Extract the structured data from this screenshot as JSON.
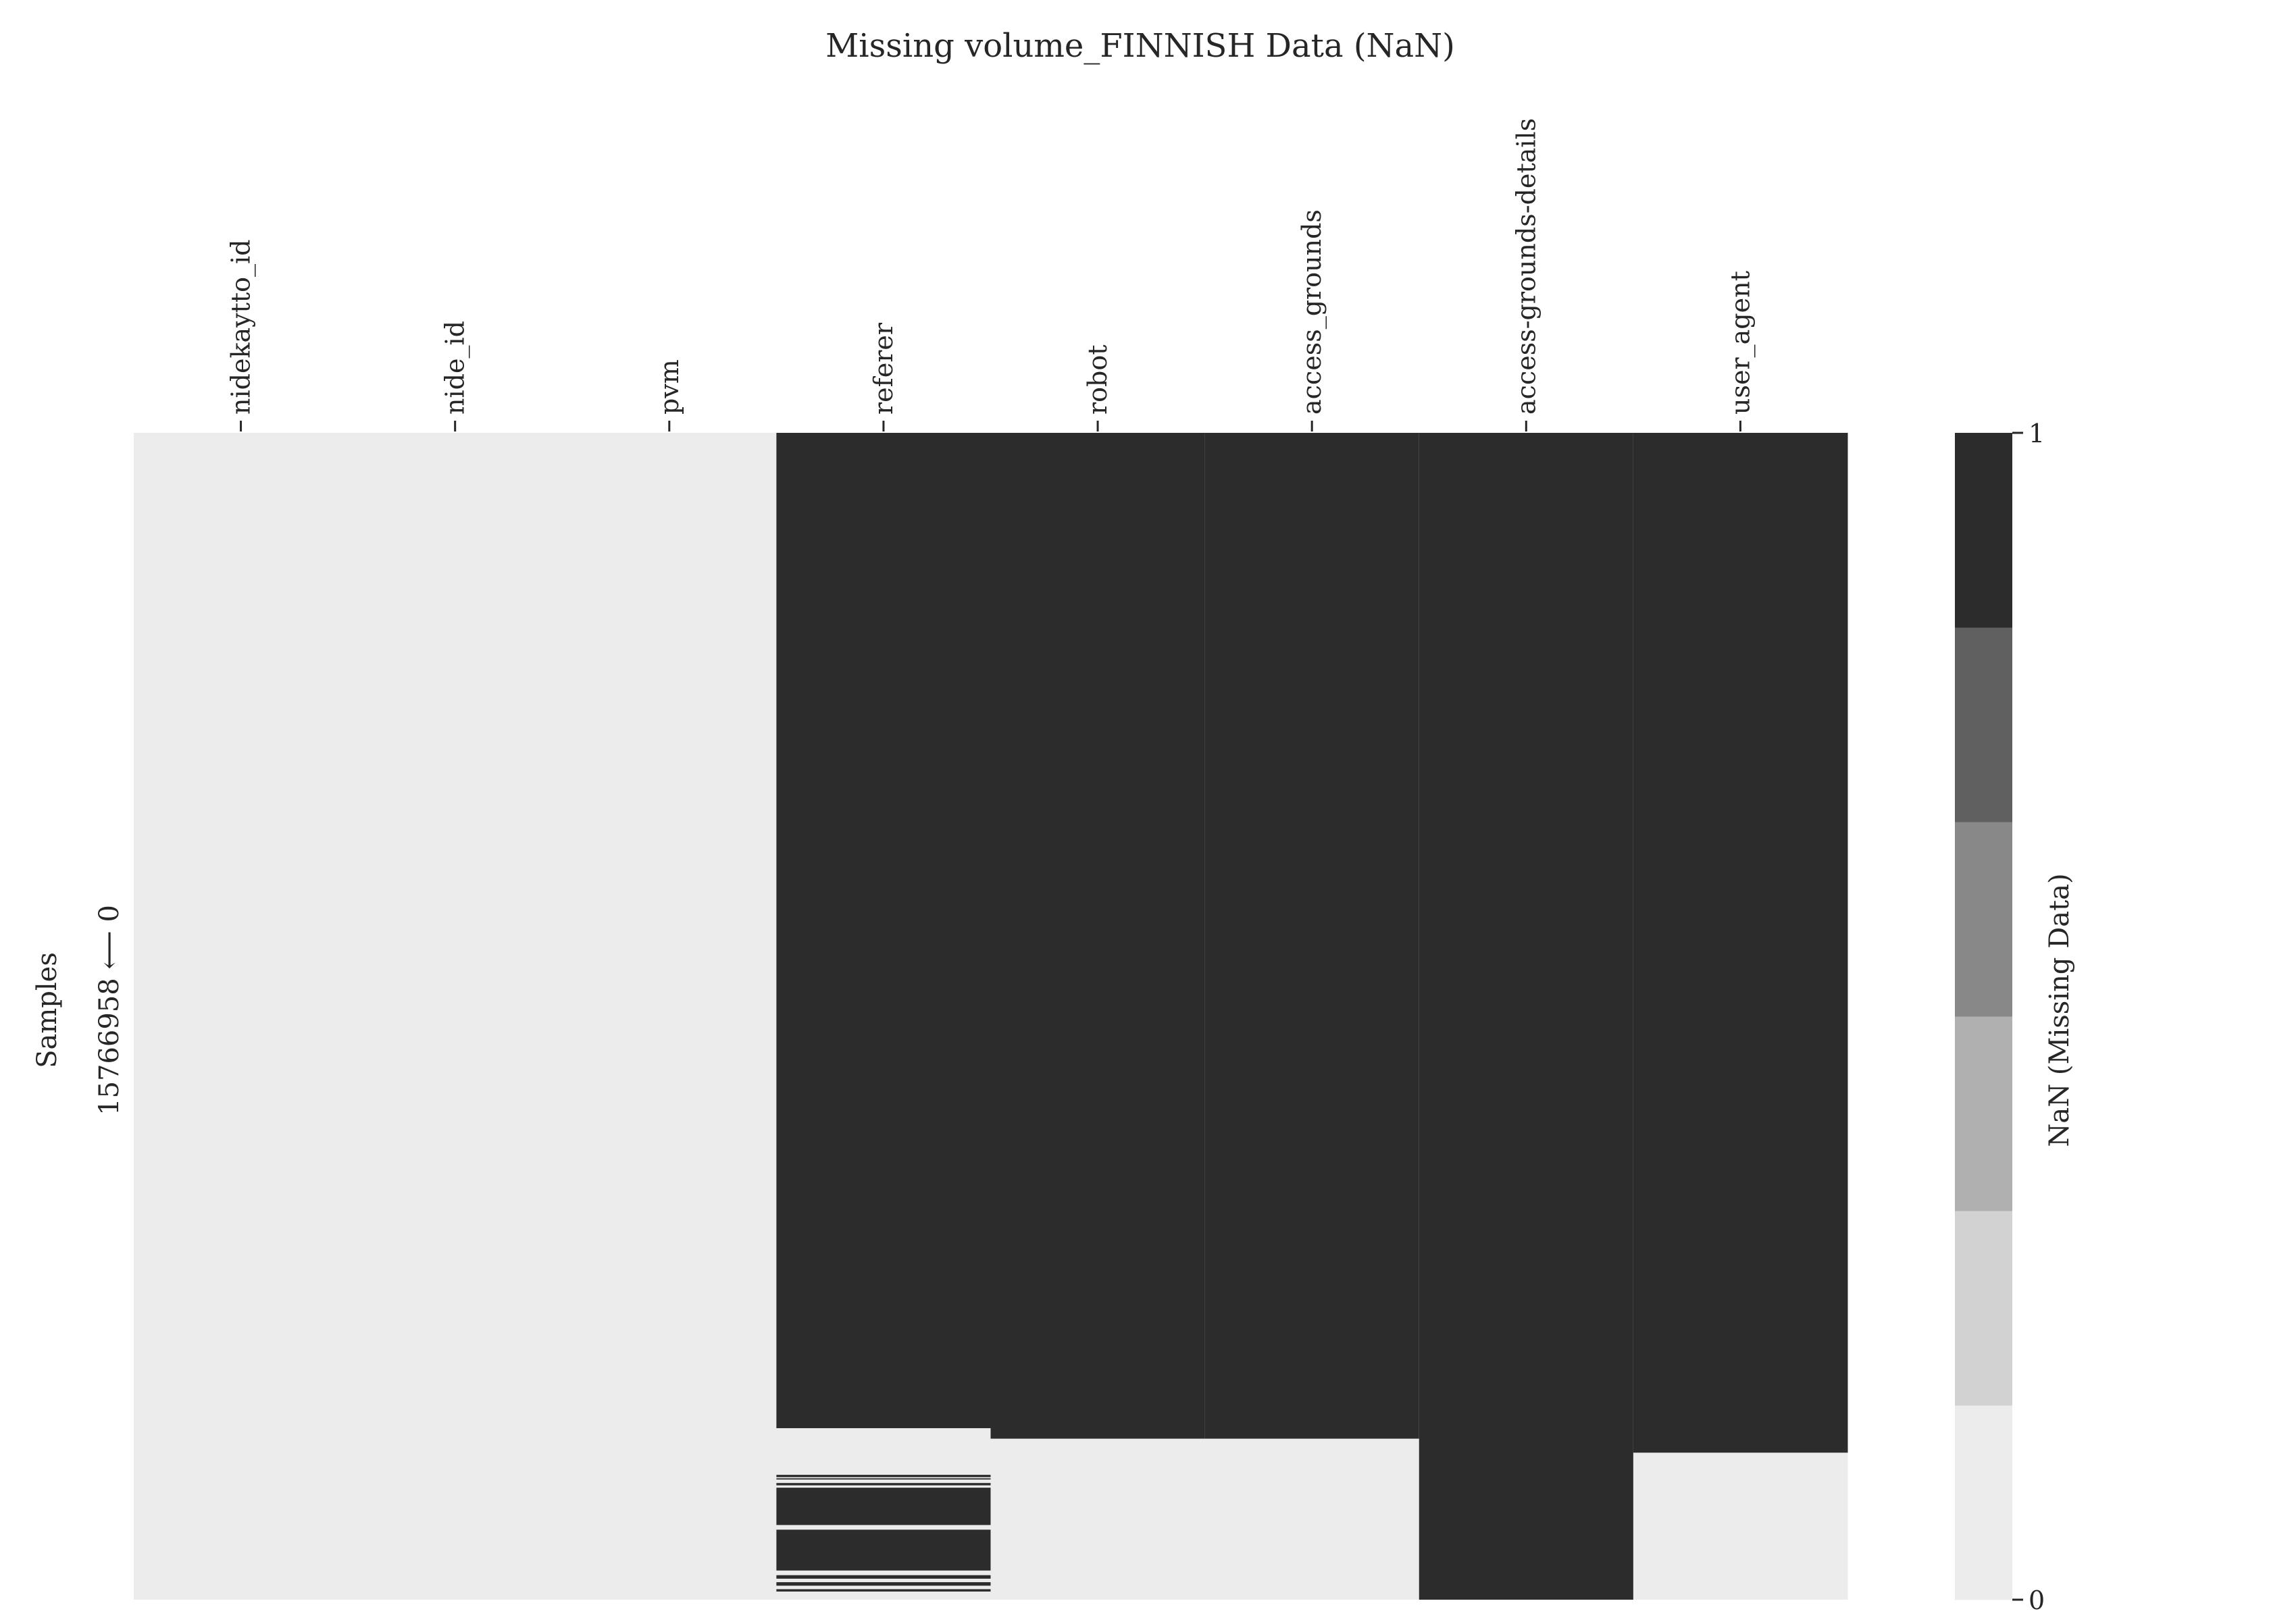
{
  "colors": {
    "present": "#ececec",
    "missing": "#2c2c2c",
    "colorbar_levels": [
      "#ececec",
      "#d2d2d2",
      "#b0b0b0",
      "#888888",
      "#606060",
      "#2c2c2c"
    ]
  },
  "chart_data": {
    "type": "heatmap",
    "title": "Missing volume_FINNISH Data (NaN)",
    "ylabel": "Samples",
    "yrange_label": "15766958 ⟵ 0",
    "row_range": [
      0,
      15766958
    ],
    "columns": [
      {
        "name": "nidekaytto_id",
        "missing_runs": []
      },
      {
        "name": "nide_id",
        "missing_runs": []
      },
      {
        "name": "pvm",
        "missing_runs": []
      },
      {
        "name": "referer",
        "missing_runs": [
          [
            0,
            0.853
          ],
          [
            0.893,
            0.895
          ],
          [
            0.896,
            0.897
          ],
          [
            0.9,
            0.902
          ],
          [
            0.904,
            0.936
          ],
          [
            0.94,
            0.975
          ],
          [
            0.979,
            0.982
          ],
          [
            0.985,
            0.988
          ],
          [
            0.991,
            0.993
          ]
        ]
      },
      {
        "name": "robot",
        "missing_runs": [
          [
            0,
            0.862
          ]
        ]
      },
      {
        "name": "access_grounds",
        "missing_runs": [
          [
            0,
            0.862
          ]
        ]
      },
      {
        "name": "access-grounds-details",
        "missing_runs": [
          [
            0,
            1.0
          ]
        ]
      },
      {
        "name": "user_agent",
        "missing_runs": [
          [
            0,
            0.874
          ]
        ]
      }
    ],
    "colorbar": {
      "label": "NaN (Missing Data)",
      "ticks": [
        "0",
        "1"
      ],
      "levels": 6
    },
    "grid": false,
    "legend": "colorbar-right"
  }
}
